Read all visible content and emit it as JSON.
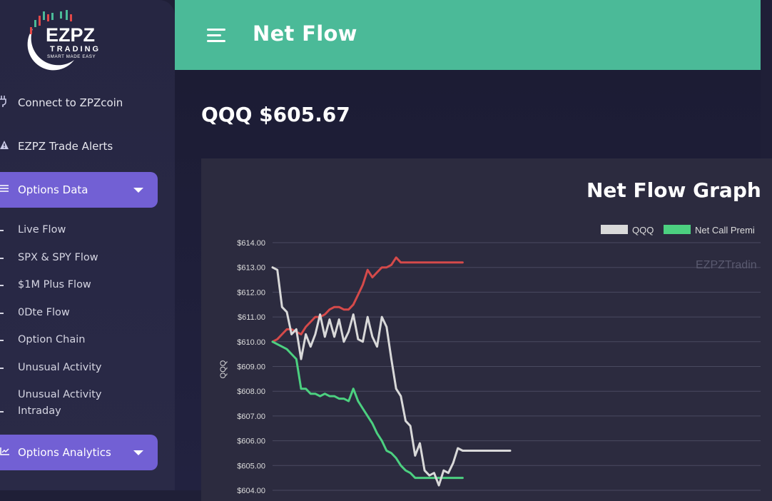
{
  "brand": {
    "logo_text": "EZPZ",
    "logo_subtext": "TRADING",
    "logo_tagline": "SMART MADE EASY"
  },
  "sidebar": {
    "links": [
      {
        "label": "Connect to ZPZcoin",
        "icon": "plug-icon"
      },
      {
        "label": "EZPZ Trade Alerts",
        "icon": "warning-icon"
      }
    ],
    "options_data": {
      "label": "Options Data",
      "icon": "list-icon",
      "items": [
        "Live Flow",
        "SPX & SPY Flow",
        "$1M Plus Flow",
        "0Dte Flow",
        "Option Chain",
        "Unusual Activity",
        "Unusual Activity",
        "Intraday"
      ]
    },
    "options_analytics": {
      "label": "Options Analytics",
      "icon": "chart-line-icon"
    }
  },
  "header": {
    "title": "Net Flow"
  },
  "main": {
    "ticker_price": "QQQ $605.67"
  },
  "colors": {
    "header": "#4bba98",
    "sidebar_active": "#7260d4",
    "qqq_line": "#d9d9d9",
    "call_line": "#4cd080",
    "red_line": "#d54a4a"
  },
  "chart_data": {
    "type": "line",
    "title": "Net Flow Graph",
    "ylabel": "QQQ",
    "ylim": [
      604.0,
      614.0
    ],
    "y_ticks": [
      "$614.00",
      "$613.00",
      "$612.00",
      "$611.00",
      "$610.00",
      "$609.00",
      "$608.00",
      "$607.00",
      "$606.00",
      "$605.00",
      "$604.00"
    ],
    "legend": [
      "QQQ",
      "Net Call Premi"
    ],
    "watermark": "EZPZTradin",
    "grid": true,
    "series": [
      {
        "name": "QQQ",
        "color": "#d9d9d9",
        "x": [
          0,
          2,
          4,
          6,
          8,
          10,
          12,
          14,
          16,
          18,
          20,
          22,
          24,
          26,
          28,
          30,
          32,
          34,
          36,
          38,
          40,
          42,
          44,
          46,
          48,
          50,
          52,
          54,
          56,
          58,
          60,
          62,
          64,
          66,
          68,
          70,
          72,
          74,
          76,
          78,
          80,
          82,
          84,
          86,
          88,
          90,
          92,
          94,
          96,
          98,
          100
        ],
        "values": [
          613.0,
          612.9,
          611.4,
          611.2,
          610.3,
          610.5,
          609.3,
          610.3,
          609.8,
          610.3,
          611.1,
          610.2,
          610.9,
          610.2,
          610.9,
          610.0,
          610.4,
          611.1,
          610.1,
          610.0,
          611.0,
          610.2,
          609.8,
          611.0,
          610.6,
          609.3,
          608.1,
          607.8,
          606.8,
          606.6,
          605.4,
          605.9,
          604.8,
          604.6,
          604.7,
          604.2,
          604.8,
          604.7,
          605.1,
          605.7,
          605.6,
          605.6,
          605.6,
          605.6,
          605.6,
          605.6,
          605.6,
          605.6,
          605.6,
          605.6,
          605.6
        ]
      },
      {
        "name": "Net Call Premi",
        "color": "#4cd080",
        "x": [
          0,
          2,
          4,
          6,
          8,
          10,
          12,
          14,
          16,
          18,
          20,
          22,
          24,
          26,
          28,
          30,
          32,
          34,
          36,
          38,
          40,
          42,
          44,
          46,
          48,
          50,
          52,
          54,
          56,
          58,
          60,
          62,
          64,
          66,
          68,
          70,
          72,
          74,
          76,
          78,
          80
        ],
        "values": [
          610.0,
          609.9,
          609.8,
          609.7,
          609.5,
          609.3,
          608.1,
          608.1,
          607.9,
          607.9,
          607.8,
          607.9,
          607.8,
          607.8,
          607.7,
          607.7,
          607.6,
          608.1,
          607.6,
          607.3,
          607.0,
          606.7,
          606.3,
          606.0,
          605.6,
          605.5,
          605.3,
          605.0,
          604.8,
          604.7,
          604.5,
          604.5,
          604.5,
          604.5,
          604.5,
          604.5,
          604.5,
          604.5,
          604.5,
          604.5,
          604.5
        ]
      },
      {
        "name": "",
        "color": "#d54a4a",
        "x": [
          0,
          2,
          4,
          6,
          8,
          10,
          12,
          14,
          16,
          18,
          20,
          22,
          24,
          26,
          28,
          30,
          32,
          34,
          36,
          38,
          40,
          42,
          44,
          46,
          48,
          50,
          52,
          54,
          56,
          58,
          60,
          62,
          64,
          66,
          68,
          70,
          72,
          74,
          76,
          78,
          80
        ],
        "values": [
          610.0,
          610.1,
          610.3,
          610.5,
          610.5,
          610.4,
          610.3,
          610.6,
          610.8,
          611.0,
          611.0,
          611.1,
          611.3,
          611.4,
          611.4,
          611.3,
          611.3,
          611.5,
          611.9,
          612.3,
          612.9,
          612.6,
          612.8,
          613.0,
          613.0,
          613.1,
          613.4,
          613.2,
          613.2,
          613.2,
          613.2,
          613.2,
          613.2,
          613.2,
          613.2,
          613.2,
          613.2,
          613.2,
          613.2,
          613.2,
          613.2
        ]
      }
    ]
  }
}
